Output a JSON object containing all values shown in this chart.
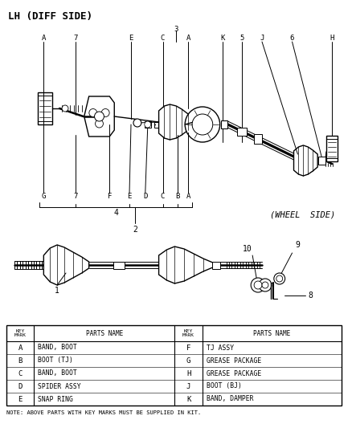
{
  "title": "LH (DIFF SIDE)",
  "wheel_side_label": "(WHEEL  SIDE)",
  "bg_color": "#ffffff",
  "line_color": "#000000",
  "text_color": "#000000",
  "table": {
    "rows_left": [
      [
        "A",
        "BAND, BOOT"
      ],
      [
        "B",
        "BOOT (TJ)"
      ],
      [
        "C",
        "BAND, BOOT"
      ],
      [
        "D",
        "SPIDER ASSY"
      ],
      [
        "E",
        "SNAP RING"
      ]
    ],
    "rows_right": [
      [
        "F",
        "TJ ASSY"
      ],
      [
        "G",
        "GREASE PACKAGE"
      ],
      [
        "H",
        "GREASE PACKAGE"
      ],
      [
        "J",
        "BOOT (BJ)"
      ],
      [
        "K",
        "BAND, DAMPER"
      ]
    ]
  },
  "note": "NOTE: ABOVE PARTS WITH KEY MARKS MUST BE SUPPLIED IN KIT."
}
